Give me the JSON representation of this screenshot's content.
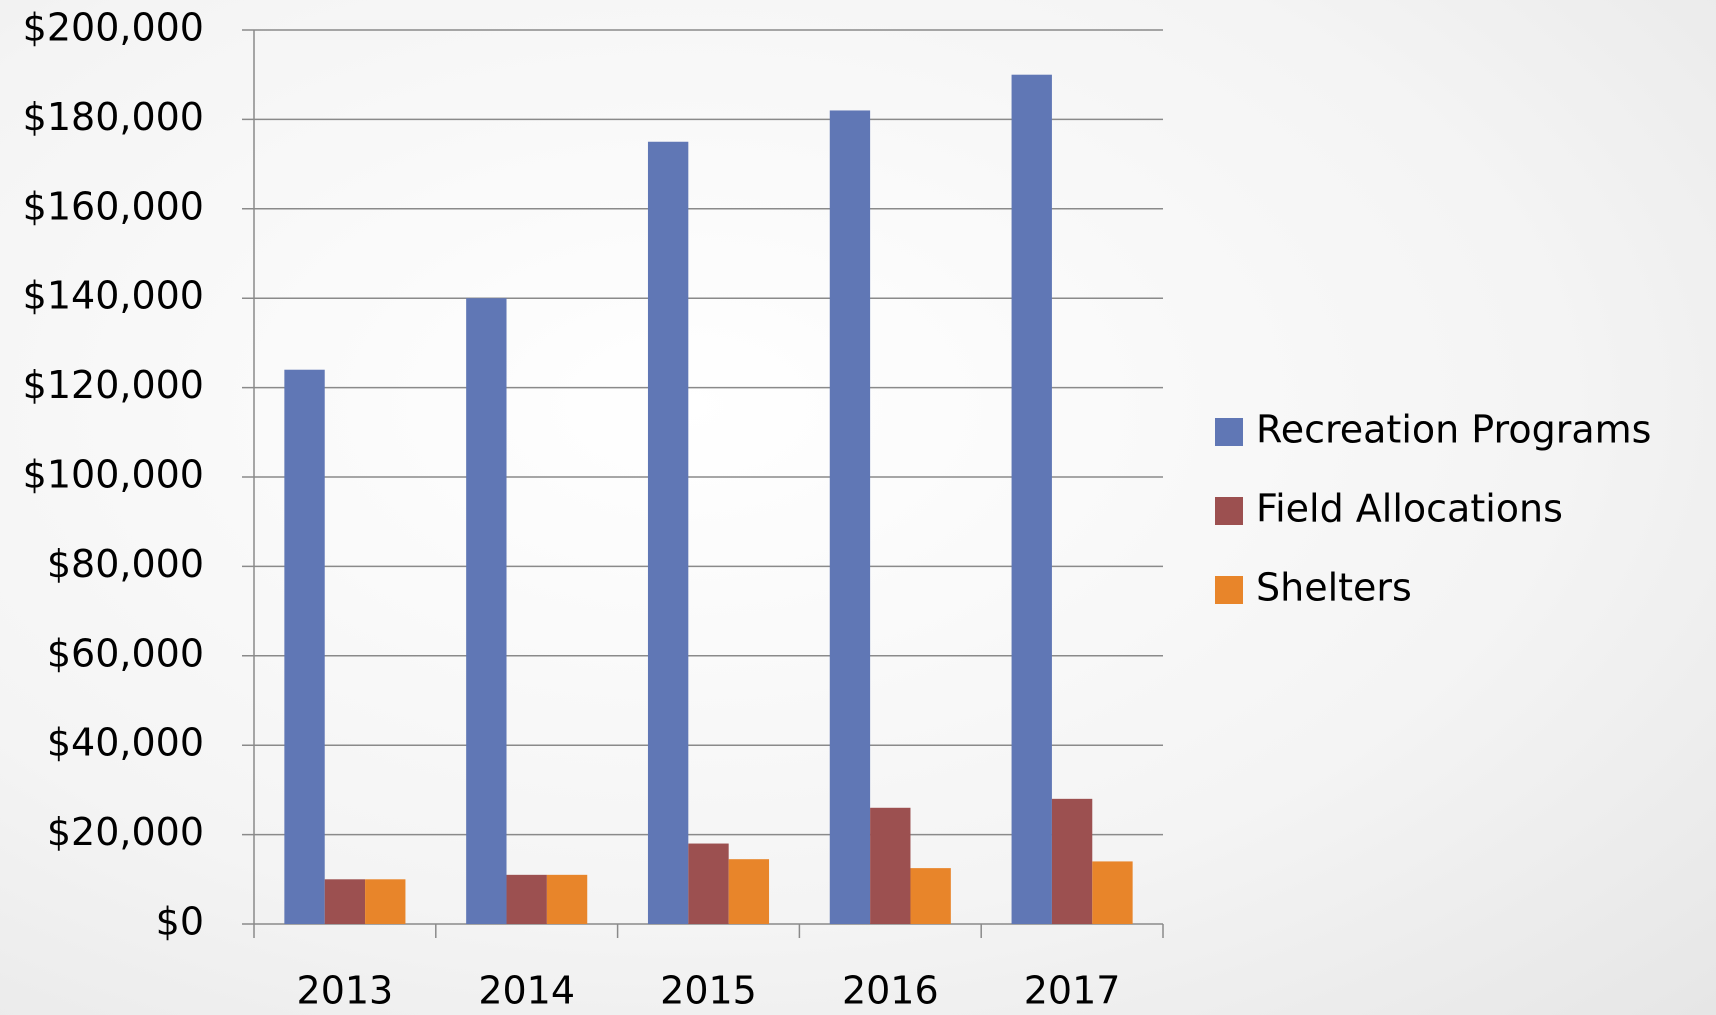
{
  "chart_data": {
    "type": "bar",
    "categories": [
      "2013",
      "2014",
      "2015",
      "2016",
      "2017"
    ],
    "series": [
      {
        "name": "Recreation Programs",
        "color": "#6077b5",
        "values": [
          124000,
          140000,
          175000,
          182000,
          190000
        ]
      },
      {
        "name": "Field Allocations",
        "color": "#9c5050",
        "values": [
          10000,
          11000,
          18000,
          26000,
          28000
        ]
      },
      {
        "name": "Shelters",
        "color": "#e8852a",
        "values": [
          10000,
          11000,
          14500,
          12500,
          14000
        ]
      }
    ],
    "ylim": [
      0,
      200000
    ],
    "yticks": [
      {
        "value": 0,
        "label": "$0"
      },
      {
        "value": 20000,
        "label": "$20,000"
      },
      {
        "value": 40000,
        "label": "$40,000"
      },
      {
        "value": 60000,
        "label": "$60,000"
      },
      {
        "value": 80000,
        "label": "$80,000"
      },
      {
        "value": 100000,
        "label": "$100,000"
      },
      {
        "value": 120000,
        "label": "$120,000"
      },
      {
        "value": 140000,
        "label": "$140,000"
      },
      {
        "value": 160000,
        "label": "$160,000"
      },
      {
        "value": 180000,
        "label": "$180,000"
      },
      {
        "value": 200000,
        "label": "$200,000"
      }
    ],
    "grid": true,
    "legend": "right"
  }
}
